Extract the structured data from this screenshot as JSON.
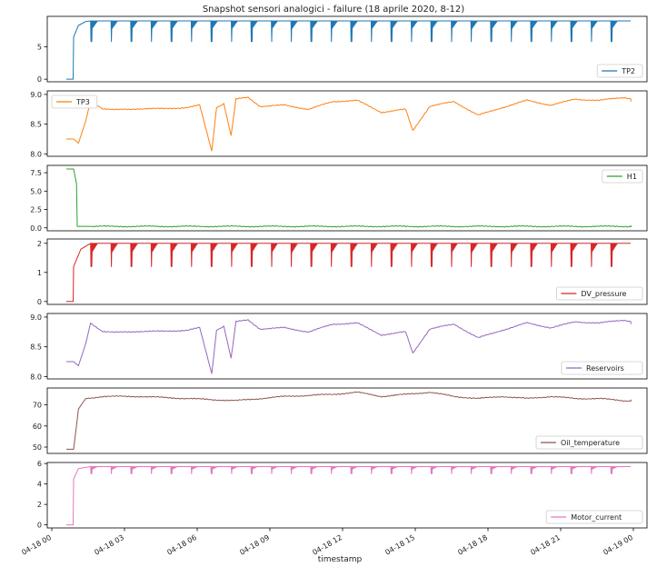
{
  "title": "Snapshot sensori analogici - failure (18 aprile 2020, 8-12)",
  "chart_data": {
    "type": "line",
    "title": "Snapshot sensori analogici - failure (18 aprile 2020, 8-12)",
    "xlabel": "timestamp",
    "x_ticks": [
      "04-18 00",
      "04-18 03",
      "04-18 06",
      "04-18 09",
      "04-18 12",
      "04-18 15",
      "04-18 18",
      "04-18 21",
      "04-19 00"
    ],
    "x_range_hours": [
      0,
      24
    ],
    "grid": false,
    "panels": [
      {
        "name": "TP2",
        "color": "#1f77b4",
        "legend": "lower right",
        "ylim": [
          -0.4,
          9.7
        ],
        "yticks": [
          0,
          5
        ],
        "style": "sawtooth",
        "series": {
          "x": [
            0,
            0.28,
            0.3,
            0.5,
            0.8,
            1.0,
            24.0
          ],
          "y": [
            0,
            0,
            6.5,
            8.3,
            8.9,
            9.0,
            9.0
          ]
        },
        "band_low": 5.8
      },
      {
        "name": "TP3",
        "color": "#ff7f0e",
        "legend": "upper left",
        "ylim": [
          7.96,
          9.06
        ],
        "yticks": [
          8.0,
          8.5,
          9.0
        ],
        "style": "line",
        "series": {
          "x": [
            0,
            0.3,
            0.5,
            0.8,
            1.0,
            1.5,
            2,
            3,
            4,
            5,
            5.5,
            6.0,
            6.2,
            6.5,
            6.8,
            7.0,
            7.5,
            8,
            9,
            10,
            11,
            12,
            13,
            14,
            14.3,
            15,
            16,
            17,
            18,
            19,
            20,
            21,
            22,
            23,
            24
          ],
          "y": [
            8.25,
            8.25,
            8.18,
            8.55,
            8.9,
            8.76,
            8.74,
            8.76,
            8.76,
            8.78,
            8.82,
            8.05,
            8.78,
            8.85,
            8.3,
            8.92,
            8.95,
            8.8,
            8.82,
            8.75,
            8.88,
            8.9,
            8.7,
            8.75,
            8.4,
            8.8,
            8.88,
            8.65,
            8.78,
            8.9,
            8.82,
            8.92,
            8.9,
            8.95,
            8.88
          ]
        }
      },
      {
        "name": "H1",
        "color": "#2ca02c",
        "legend": "upper right",
        "ylim": [
          -0.4,
          8.5
        ],
        "yticks": [
          0.0,
          2.5,
          5.0,
          7.5
        ],
        "style": "line",
        "series": {
          "x": [
            0,
            0.3,
            0.42,
            0.45,
            24
          ],
          "y": [
            8.0,
            8.0,
            6.0,
            0.2,
            0.2
          ]
        }
      },
      {
        "name": "DV_pressure",
        "color": "#d62728",
        "legend": "lower right",
        "ylim": [
          -0.1,
          2.15
        ],
        "yticks": [
          0,
          1,
          2
        ],
        "style": "sawtooth",
        "series": {
          "x": [
            0,
            0.28,
            0.3,
            0.6,
            1.0,
            24.0
          ],
          "y": [
            0,
            0,
            1.2,
            1.8,
            2.0,
            2.0
          ]
        },
        "band_low": 1.2
      },
      {
        "name": "Reservoirs",
        "color": "#9467bd",
        "legend": "lower right",
        "ylim": [
          7.96,
          9.06
        ],
        "yticks": [
          8.0,
          8.5,
          9.0
        ],
        "style": "line",
        "series": {
          "x": [
            0,
            0.3,
            0.5,
            0.8,
            1.0,
            1.5,
            2,
            3,
            4,
            5,
            5.5,
            6.0,
            6.2,
            6.5,
            6.8,
            7.0,
            7.5,
            8,
            9,
            10,
            11,
            12,
            13,
            14,
            14.3,
            15,
            16,
            17,
            18,
            19,
            20,
            21,
            22,
            23,
            24
          ],
          "y": [
            8.25,
            8.25,
            8.18,
            8.55,
            8.9,
            8.76,
            8.74,
            8.76,
            8.76,
            8.78,
            8.82,
            8.05,
            8.78,
            8.85,
            8.3,
            8.92,
            8.95,
            8.8,
            8.82,
            8.75,
            8.88,
            8.9,
            8.7,
            8.75,
            8.4,
            8.8,
            8.88,
            8.65,
            8.78,
            8.9,
            8.82,
            8.92,
            8.9,
            8.95,
            8.88
          ]
        }
      },
      {
        "name": "Oil_temperature",
        "color": "#8c564b",
        "legend": "lower right",
        "ylim": [
          47,
          78
        ],
        "yticks": [
          50,
          60,
          70
        ],
        "style": "line",
        "series": {
          "x": [
            0,
            0.3,
            0.5,
            0.8,
            1.5,
            3,
            5,
            7,
            9,
            11,
            12,
            13,
            14,
            15,
            16,
            17,
            18,
            19,
            20,
            21,
            22,
            23,
            24
          ],
          "y": [
            49,
            49,
            68,
            73,
            74,
            74,
            73,
            72,
            74,
            75,
            76,
            74,
            75,
            76,
            74,
            73,
            74,
            73,
            74,
            73,
            73,
            72,
            72
          ]
        }
      },
      {
        "name": "Motor_current",
        "color": "#e377c2",
        "legend": "lower right",
        "ylim": [
          -0.3,
          6.1
        ],
        "yticks": [
          0,
          2,
          4,
          6
        ],
        "style": "sawtooth",
        "series": {
          "x": [
            0,
            0.28,
            0.3,
            0.5,
            1.0,
            24.0
          ],
          "y": [
            0,
            0,
            4.5,
            5.5,
            5.7,
            5.7
          ]
        },
        "band_low": 5.0
      }
    ]
  }
}
